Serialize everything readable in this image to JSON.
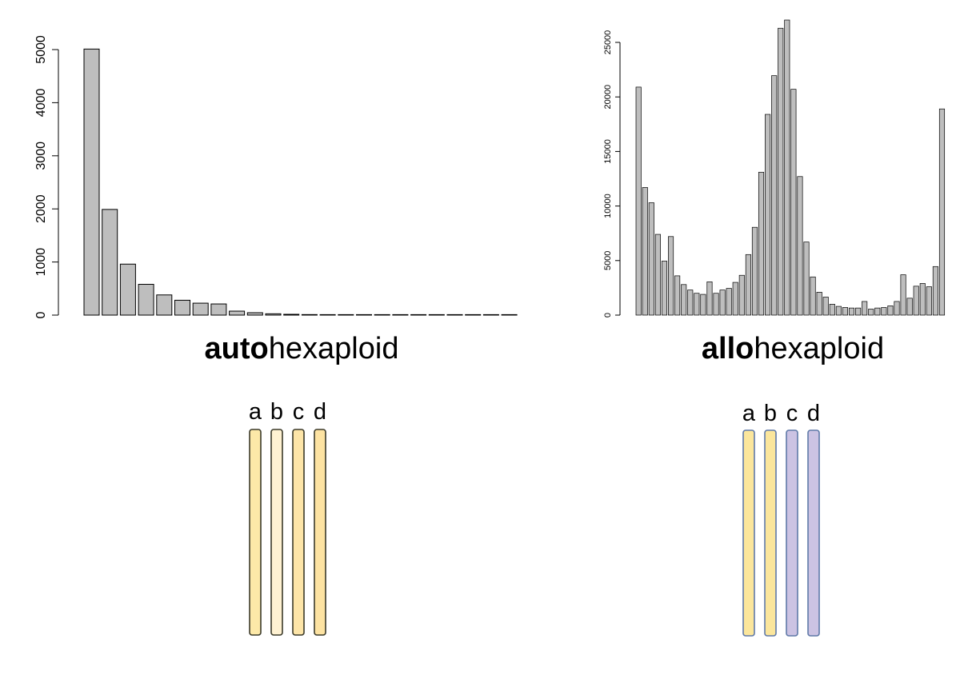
{
  "chart_data": [
    {
      "type": "bar",
      "title_bold": "auto",
      "title_rest": "hexaploid",
      "xlabel": "",
      "ylabel": "",
      "ylim": [
        0,
        5000
      ],
      "yticks": [
        0,
        1000,
        2000,
        3000,
        4000,
        5000
      ],
      "bar_fill": "#bebebe",
      "values": [
        5010,
        1990,
        960,
        580,
        380,
        280,
        225,
        210,
        75,
        45,
        25,
        15,
        10,
        8,
        6,
        5,
        4,
        3,
        3,
        2,
        2,
        1,
        1,
        1
      ]
    },
    {
      "type": "bar",
      "title_bold": "allo",
      "title_rest": "hexaploid",
      "xlabel": "",
      "ylabel": "",
      "ylim": [
        0,
        25000
      ],
      "yticks": [
        0,
        5000,
        10000,
        15000,
        20000,
        25000
      ],
      "bar_fill": "#bebebe",
      "values": [
        20900,
        11700,
        10300,
        7400,
        4950,
        7200,
        3600,
        2800,
        2300,
        2000,
        1900,
        3050,
        2000,
        2300,
        2450,
        3000,
        3650,
        5550,
        8050,
        13100,
        18400,
        21950,
        26300,
        27050,
        20700,
        12700,
        6700,
        3500,
        2100,
        1650,
        1000,
        800,
        700,
        650,
        650,
        1250,
        550,
        650,
        700,
        850,
        1250,
        3700,
        1550,
        2650,
        2900,
        2600,
        4450,
        18900
      ]
    }
  ],
  "chromosome_panels": [
    {
      "labels": [
        "a",
        "b",
        "c",
        "d"
      ],
      "fills": [
        "#fde9a8",
        "#fff2d2",
        "#fde5a8",
        "#fde3a2"
      ],
      "border": "#3b3a2a"
    },
    {
      "labels": [
        "a",
        "b",
        "c",
        "d"
      ],
      "fills": [
        "#fbe69c",
        "#fbe69c",
        "#ccc3e3",
        "#ccc3e3"
      ],
      "border": "#5f79a8"
    }
  ]
}
